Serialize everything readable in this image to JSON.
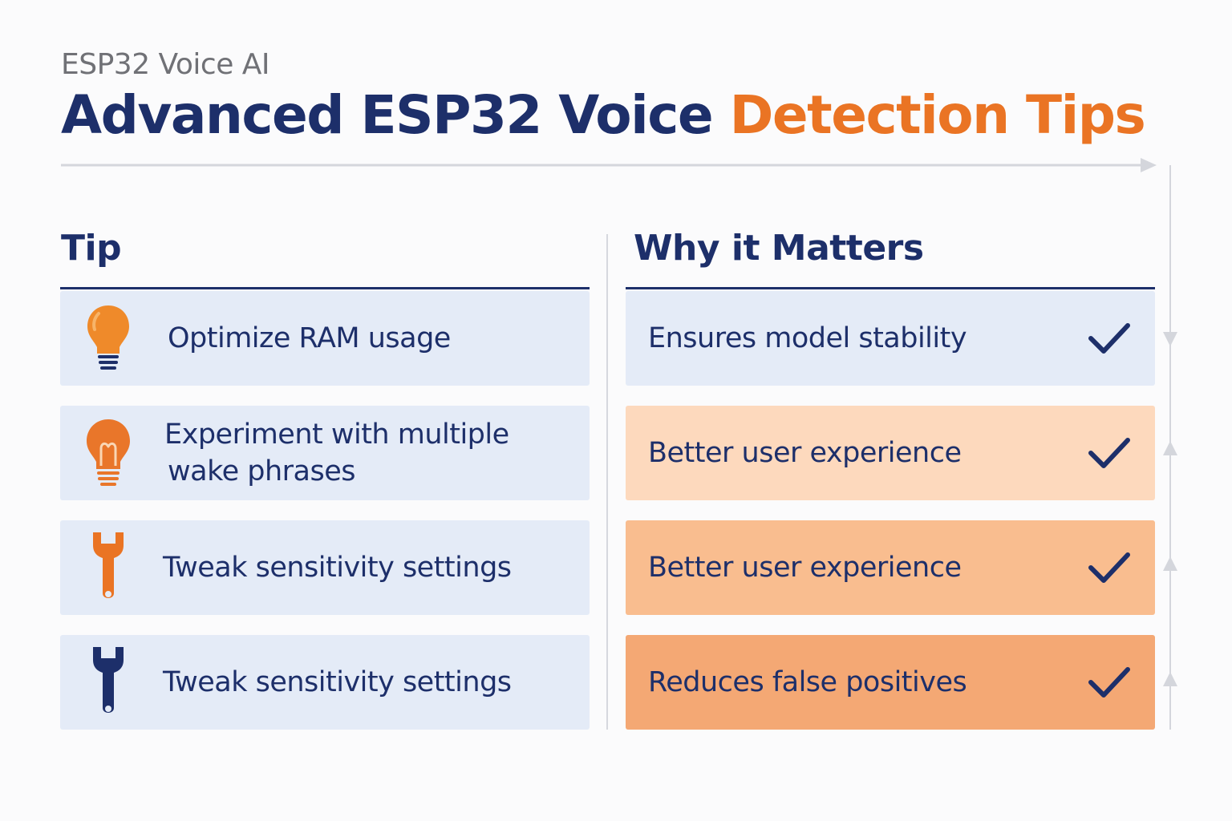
{
  "header": {
    "subtitle": "ESP32 Voice AI",
    "title_main": "Advanced ESP32 Voice ",
    "title_accent": "Detection Tips"
  },
  "columns": {
    "tip": "Tip",
    "why": "Why it Matters"
  },
  "rows": [
    {
      "tip": "Optimize RAM usage",
      "why": "Ensures model stability",
      "tip_icon": "lightbulb-icon",
      "why_color": "#e4ebf7"
    },
    {
      "tip": "Experiment with multiple wake phrases",
      "tip_line1": "Experiment with multiple",
      "tip_line2": "wake phrases",
      "why": "Better user experience",
      "tip_icon": "lightbulb-icon",
      "why_color": "#fdd9bd"
    },
    {
      "tip": "Tweak sensitivity settings",
      "why": "Better user experience",
      "tip_icon": "wrench-icon",
      "why_color": "#f9bd8f"
    },
    {
      "tip": "Tweak sensitivity settings",
      "why": "Reduces false positives",
      "tip_icon": "wrench-icon",
      "why_color": "#f4a874"
    }
  ],
  "colors": {
    "navy": "#1d2f6a",
    "orange": "#ea7424",
    "tip_row_bg": "#e4ebf7"
  }
}
